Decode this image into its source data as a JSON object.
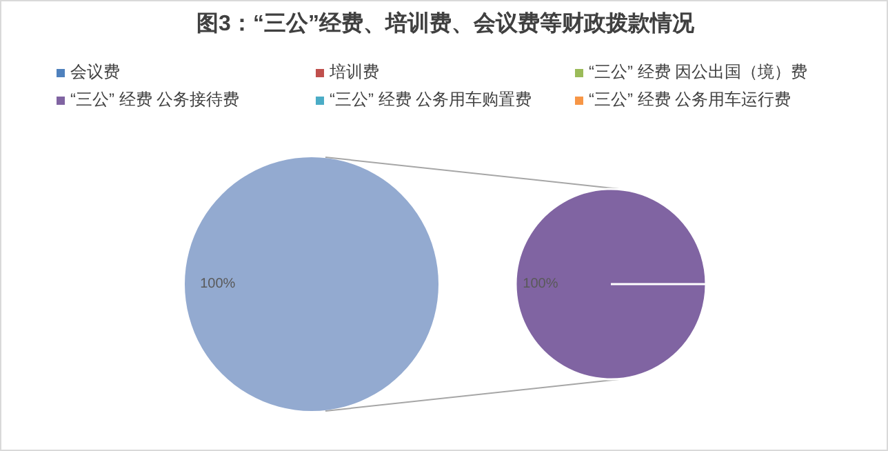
{
  "chart_data": [
    {
      "type": "pie",
      "title": "图3：“三公”经费、培训费、会议费等财政拨款情况",
      "categories": [
        null
      ],
      "values": [
        100
      ],
      "colors": [
        "#93aad0"
      ],
      "value_labels": [
        "100%"
      ]
    },
    {
      "type": "pie",
      "categories": [
        "会议费",
        "培训费",
        "“三公” 经费 因公出国（境）费",
        "“三公” 经费 公务接待费",
        "“三公” 经费 公务用车购置费",
        "“三公” 经费 公务用车运行费"
      ],
      "values": [
        0,
        0,
        0,
        100,
        0,
        0
      ],
      "colors": [
        "#4f81bd",
        "#c0504d",
        "#9bbb59",
        "#8064a2",
        "#4bacc6",
        "#f79646"
      ],
      "value_labels": [
        null,
        null,
        null,
        "100%",
        null,
        null
      ],
      "legend": "top"
    }
  ]
}
